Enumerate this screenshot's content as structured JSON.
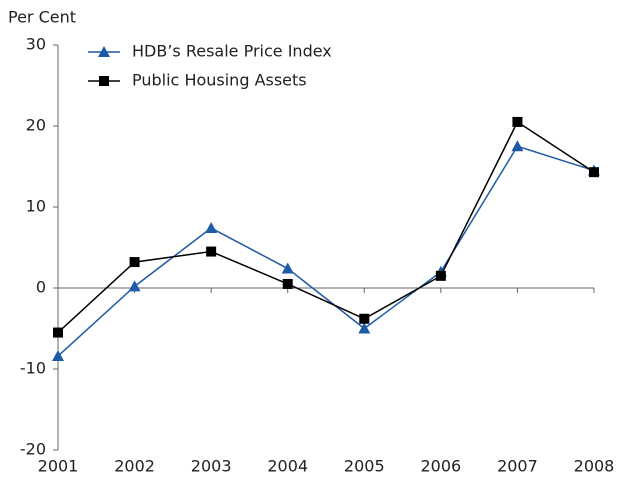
{
  "chart_data": {
    "type": "line",
    "y_label": "Per Cent",
    "categories": [
      "2001",
      "2002",
      "2003",
      "2004",
      "2005",
      "2006",
      "2007",
      "2008"
    ],
    "series": [
      {
        "name": "HDB’s Resale Price Index",
        "color": "#1f5aa6",
        "marker": "triangle",
        "values": [
          -8.4,
          0.2,
          7.4,
          2.4,
          -5,
          2,
          17.5,
          14.5
        ]
      },
      {
        "name": "Public Housing Assets",
        "color": "#000000",
        "marker": "square",
        "values": [
          -5.5,
          3.2,
          4.5,
          0.5,
          -3.8,
          1.5,
          20.5,
          14.3
        ]
      }
    ],
    "ylim": [
      -20,
      30
    ],
    "yticks": [
      -20,
      -10,
      0,
      10,
      20,
      30
    ],
    "legend": "top-left"
  }
}
